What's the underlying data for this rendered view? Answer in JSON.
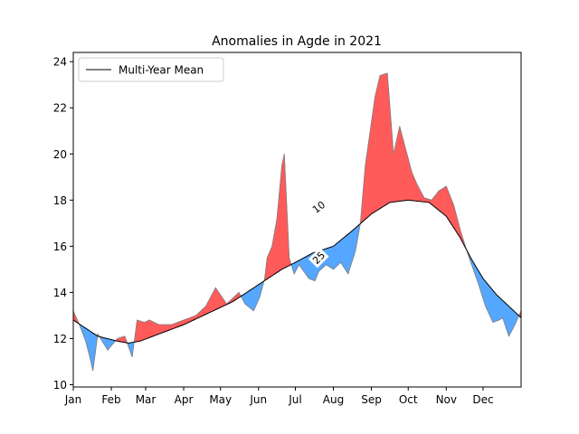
{
  "chart_data": {
    "type": "area",
    "title": "Anomalies in Agde in 2021",
    "xlabel": "",
    "ylabel": "",
    "xlim": [
      0,
      365
    ],
    "ylim": [
      9.9,
      24.4
    ],
    "grid": false,
    "legend": {
      "placement": "top-left",
      "entries": [
        "Multi-Year Mean"
      ]
    },
    "x_ticks": [
      {
        "label": "Jan",
        "day": 0
      },
      {
        "label": "Feb",
        "day": 31
      },
      {
        "label": "Mar",
        "day": 59
      },
      {
        "label": "Apr",
        "day": 90
      },
      {
        "label": "May",
        "day": 120
      },
      {
        "label": "Jun",
        "day": 151
      },
      {
        "label": "Jul",
        "day": 181
      },
      {
        "label": "Aug",
        "day": 212
      },
      {
        "label": "Sep",
        "day": 243
      },
      {
        "label": "Oct",
        "day": 273
      },
      {
        "label": "Nov",
        "day": 304
      },
      {
        "label": "Dec",
        "day": 334
      }
    ],
    "y_ticks": [
      10,
      12,
      14,
      16,
      18,
      20,
      22,
      24
    ],
    "colors": {
      "above": "#ff5b5b",
      "below": "#56a7ff",
      "mean": "#000000",
      "observed": "#808080"
    },
    "mean_nodes": [
      [
        0,
        12.8
      ],
      [
        20,
        12.1
      ],
      [
        35,
        11.9
      ],
      [
        45,
        11.8
      ],
      [
        55,
        11.9
      ],
      [
        65,
        12.1
      ],
      [
        90,
        12.6
      ],
      [
        110,
        13.1
      ],
      [
        130,
        13.6
      ],
      [
        150,
        14.3
      ],
      [
        170,
        15.0
      ],
      [
        181,
        15.3
      ],
      [
        195,
        15.7
      ],
      [
        212,
        16.0
      ],
      [
        228,
        16.7
      ],
      [
        243,
        17.4
      ],
      [
        258,
        17.9
      ],
      [
        273,
        18.0
      ],
      [
        290,
        17.9
      ],
      [
        304,
        17.3
      ],
      [
        315,
        16.4
      ],
      [
        325,
        15.4
      ],
      [
        334,
        14.6
      ],
      [
        345,
        13.9
      ],
      [
        355,
        13.4
      ],
      [
        365,
        12.9
      ]
    ],
    "observed_nodes": [
      [
        0,
        13.2
      ],
      [
        5,
        12.6
      ],
      [
        10,
        11.9
      ],
      [
        13,
        11.3
      ],
      [
        16,
        10.6
      ],
      [
        20,
        12.2
      ],
      [
        28,
        11.5
      ],
      [
        36,
        12.0
      ],
      [
        42,
        12.1
      ],
      [
        48,
        11.2
      ],
      [
        52,
        12.8
      ],
      [
        58,
        12.7
      ],
      [
        62,
        12.8
      ],
      [
        70,
        12.6
      ],
      [
        80,
        12.6
      ],
      [
        90,
        12.8
      ],
      [
        100,
        13.0
      ],
      [
        108,
        13.4
      ],
      [
        116,
        14.2
      ],
      [
        125,
        13.5
      ],
      [
        135,
        14.0
      ],
      [
        140,
        13.5
      ],
      [
        147,
        13.2
      ],
      [
        152,
        13.8
      ],
      [
        156,
        14.6
      ],
      [
        158,
        15.5
      ],
      [
        162,
        16.0
      ],
      [
        166,
        17.2
      ],
      [
        170,
        19.5
      ],
      [
        172,
        20.0
      ],
      [
        176,
        15.5
      ],
      [
        180,
        14.8
      ],
      [
        184,
        15.2
      ],
      [
        188,
        14.9
      ],
      [
        192,
        14.6
      ],
      [
        197,
        14.5
      ],
      [
        200,
        14.9
      ],
      [
        206,
        15.2
      ],
      [
        212,
        15.0
      ],
      [
        218,
        15.3
      ],
      [
        224,
        14.8
      ],
      [
        230,
        15.8
      ],
      [
        234,
        17.0
      ],
      [
        238,
        19.5
      ],
      [
        242,
        21.0
      ],
      [
        246,
        22.5
      ],
      [
        250,
        23.4
      ],
      [
        256,
        23.5
      ],
      [
        261,
        20.0
      ],
      [
        266,
        21.2
      ],
      [
        272,
        20.0
      ],
      [
        276,
        19.2
      ],
      [
        280,
        18.7
      ],
      [
        286,
        18.1
      ],
      [
        292,
        18.0
      ],
      [
        298,
        18.4
      ],
      [
        304,
        18.6
      ],
      [
        310,
        17.8
      ],
      [
        316,
        16.6
      ],
      [
        322,
        15.6
      ],
      [
        330,
        14.4
      ],
      [
        336,
        13.4
      ],
      [
        342,
        12.7
      ],
      [
        347,
        12.8
      ],
      [
        350,
        12.9
      ],
      [
        355,
        12.1
      ],
      [
        360,
        12.6
      ],
      [
        365,
        13.2
      ]
    ],
    "annotations": [
      {
        "label": "10",
        "day": 200,
        "value": 17.7,
        "angle": -38
      },
      {
        "label": "25",
        "day": 200,
        "value": 15.5,
        "angle": -45
      }
    ]
  }
}
